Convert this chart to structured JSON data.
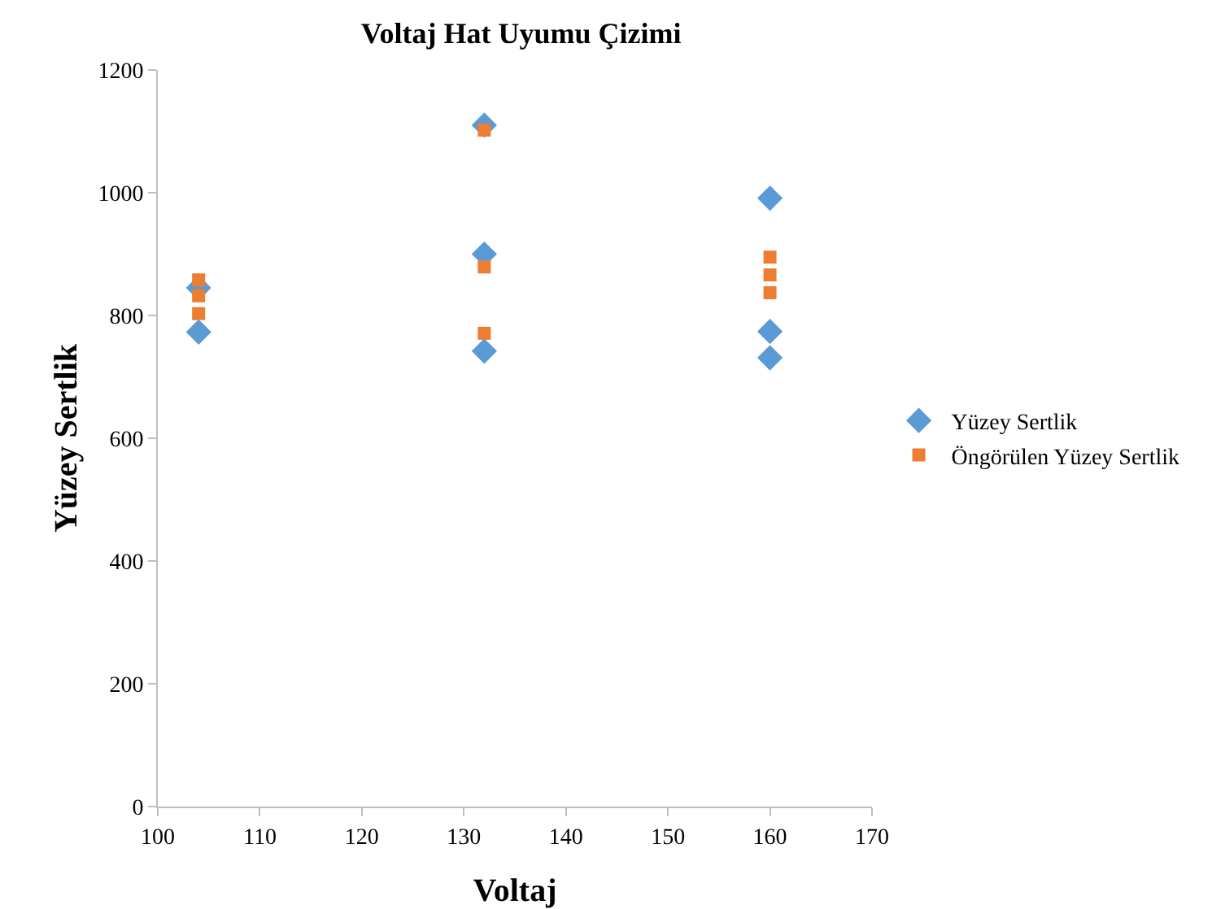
{
  "chart_data": {
    "type": "scatter",
    "title": "Voltaj Hat Uyumu Çizimi",
    "xlabel": "Voltaj",
    "ylabel": "Yüzey Sertlik",
    "xlim": [
      100,
      170
    ],
    "xticks": [
      100,
      110,
      120,
      130,
      140,
      150,
      160,
      170
    ],
    "ylim": [
      0,
      1200
    ],
    "yticks": [
      0,
      200,
      400,
      600,
      800,
      1000,
      1200
    ],
    "grid": false,
    "legend": "right",
    "series": [
      {
        "name": "Yüzey Sertlik",
        "color": "#5b9bd5",
        "marker": "diamond",
        "x": [
          104,
          104,
          132,
          132,
          132,
          160,
          160,
          160
        ],
        "values": [
          845,
          773,
          1110,
          900,
          742,
          991,
          774,
          731
        ]
      },
      {
        "name": "Öngörülen Yüzey Sertlik",
        "color": "#ed7d31",
        "marker": "square",
        "x": [
          104,
          104,
          104,
          132,
          132,
          132,
          160,
          160,
          160
        ],
        "values": [
          858,
          832,
          803,
          1102,
          879,
          771,
          895,
          866,
          837
        ]
      }
    ]
  }
}
